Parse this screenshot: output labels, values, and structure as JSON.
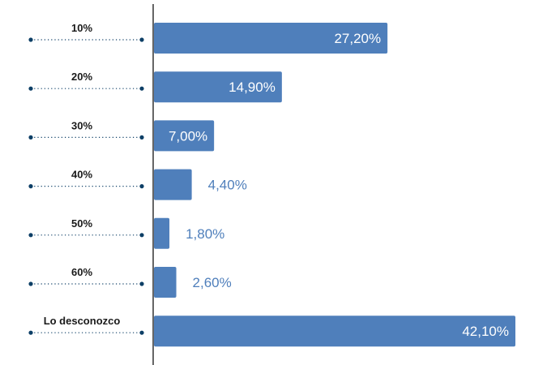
{
  "chart_data": {
    "type": "bar",
    "orientation": "horizontal",
    "categories": [
      "10%",
      "20%",
      "30%",
      "40%",
      "50%",
      "60%",
      "Lo desconozco"
    ],
    "values": [
      27.2,
      14.9,
      7.0,
      4.4,
      1.8,
      2.6,
      42.1
    ],
    "data_labels": [
      "27,20%",
      "14,90%",
      "7,00%",
      "4,40%",
      "1,80%",
      "2,60%",
      "42,10%"
    ],
    "title": "",
    "xlabel": "",
    "ylabel": "",
    "xlim": [
      0,
      42.1
    ],
    "grid": false,
    "legend": "none",
    "colors": {
      "bar": "#4f7fbb",
      "label_outside": "#4f7fbb",
      "label_inside": "#ffffff",
      "dots": "#0d3f66",
      "axis": "#333333"
    }
  }
}
